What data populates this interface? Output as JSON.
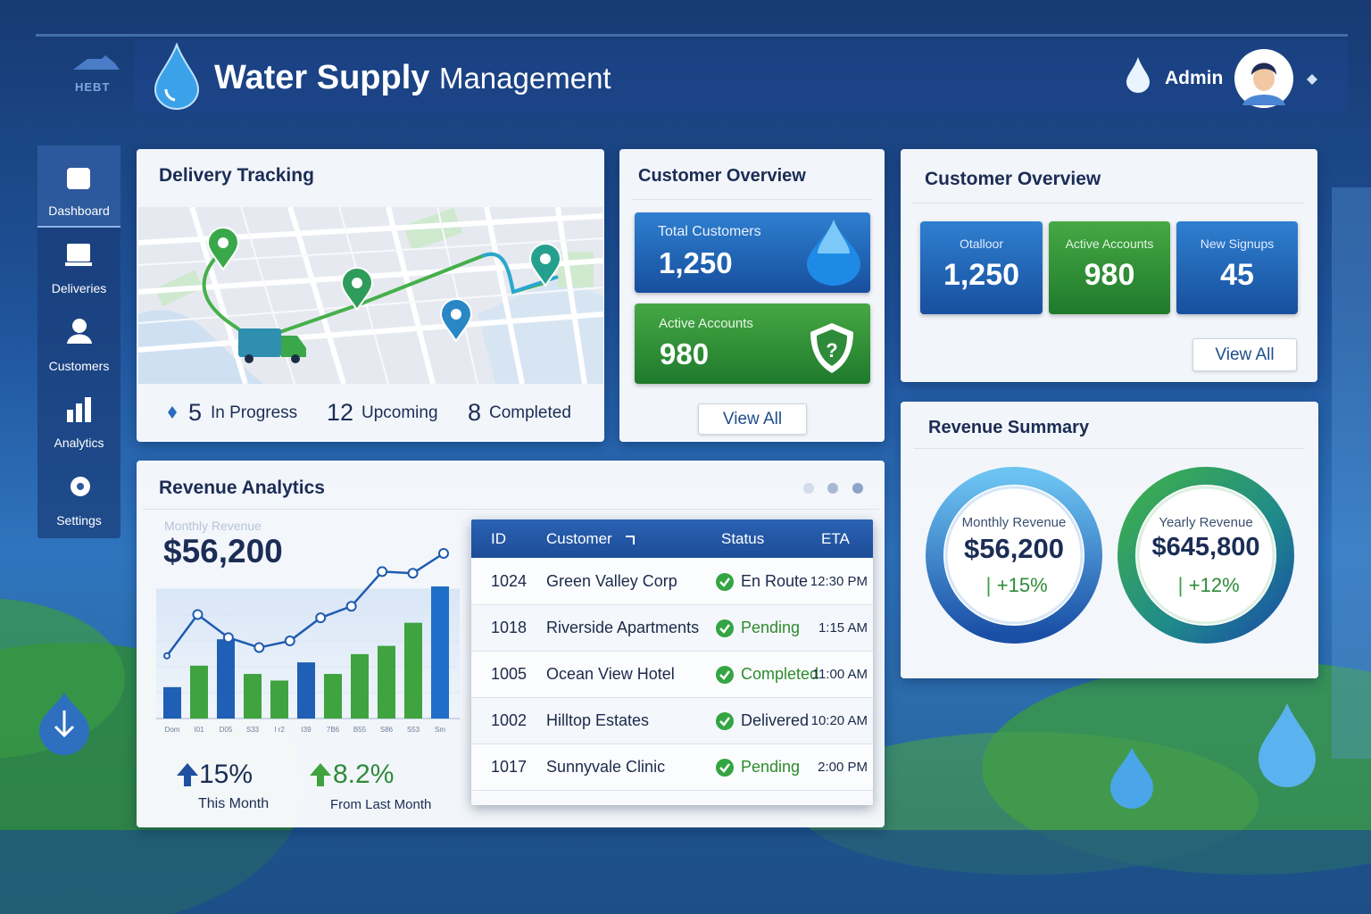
{
  "header": {
    "logo_text": "HEBT",
    "title_bold": "Water Supply",
    "title_rest": "Management",
    "user": "Admin"
  },
  "sidebar": [
    "Dashboard",
    "Deliveries",
    "Customers",
    "Analytics",
    "Settings"
  ],
  "delivery": {
    "title": "Delivery Tracking",
    "stats": [
      {
        "count": "5",
        "label": "In Progress"
      },
      {
        "count": "12",
        "label": "Upcoming"
      },
      {
        "count": "8",
        "label": "Completed"
      }
    ]
  },
  "customer_overview_left": {
    "title": "Customer Overview",
    "cards": [
      {
        "label": "Total Customers",
        "value": "1,250"
      },
      {
        "label": "Active Accounts",
        "value": "980"
      }
    ],
    "button": "View All"
  },
  "customer_overview_right": {
    "title": "Customer Overview",
    "tiles": [
      {
        "label": "Otalloor",
        "value": "1,250"
      },
      {
        "label": "Active Accounts",
        "value": "980"
      },
      {
        "label": "New Signups",
        "value": "45"
      }
    ],
    "button": "View All"
  },
  "revenue_summary": {
    "title": "Revenue Summary",
    "rings": [
      {
        "label": "Monthly Revenue",
        "value": "$56,200",
        "change": "+15%"
      },
      {
        "label": "Yearly Revenue",
        "value": "$645,800",
        "change": "+12%"
      }
    ]
  },
  "revenue_analytics": {
    "title": "Revenue Analytics",
    "metric_label": "Monthly Revenue",
    "metric_value": "$56,200",
    "chart": {
      "ylim": [
        0,
        100
      ],
      "bars": [
        19,
        32,
        48,
        27,
        23,
        34,
        27,
        39,
        44,
        58,
        80
      ],
      "bar_colors": [
        "#1f5fb5",
        "#3fa33f",
        "#1f5fb5",
        "#3fa33f",
        "#3fa33f",
        "#1f5fb5",
        "#3fa33f",
        "#3fa33f",
        "#3fa33f",
        "#3fa33f",
        "#1f6fc8"
      ],
      "line": [
        38,
        63,
        49,
        43,
        47,
        61,
        68,
        89,
        88,
        100
      ],
      "x_labels": [
        "Dom",
        "I01",
        "D05",
        "S33",
        "I r2",
        "I39",
        "7B6",
        "B55",
        "S86",
        "S53",
        "Sm"
      ]
    },
    "stats": [
      {
        "value": "15%",
        "label": "This Month"
      },
      {
        "value": "8.2%",
        "label": "From Last Month"
      }
    ]
  },
  "table": {
    "columns": [
      "ID",
      "Customer",
      "Status",
      "ETA"
    ],
    "rows": [
      [
        "1024",
        "Green Valley Corp",
        "En Route",
        "12:30 PM"
      ],
      [
        "1018",
        "Riverside Apartments",
        "Pending",
        "1:15 AM"
      ],
      [
        "1005",
        "Ocean View Hotel",
        "Completed",
        "11:00 AM"
      ],
      [
        "1002",
        "Hilltop Estates",
        "Delivered",
        "10:20 AM"
      ],
      [
        "1017",
        "Sunnyvale Clinic",
        "Pending",
        "2:00 PM"
      ]
    ]
  }
}
